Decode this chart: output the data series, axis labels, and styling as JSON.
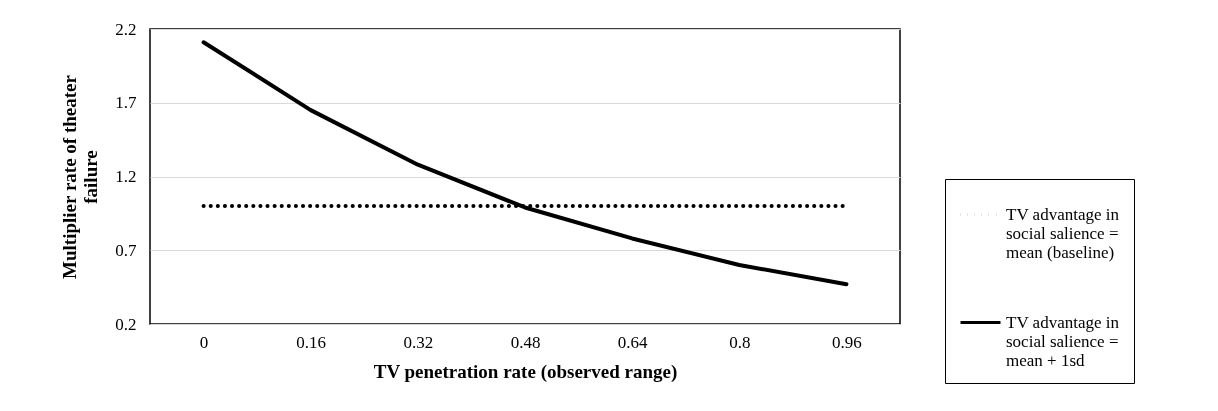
{
  "chart_data": {
    "type": "line",
    "xlabel": "TV penetration rate (observed range)",
    "ylabel": "Multiplier rate of theater failure",
    "categories": [
      "0",
      "0.16",
      "0.32",
      "0.48",
      "0.64",
      "0.8",
      "0.96"
    ],
    "series": [
      {
        "name": "TV advantage in social salience = mean (baseline)",
        "color": "#000000",
        "line_style": "dotted",
        "values": [
          1.0,
          1.0,
          1.0,
          1.0,
          1.0,
          1.0,
          1.0
        ]
      },
      {
        "name": "TV advantage in social salience = mean + 1sd",
        "color": "#000000",
        "line_style": "solid",
        "values": [
          2.11,
          1.65,
          1.28,
          0.99,
          0.78,
          0.6,
          0.47
        ]
      }
    ],
    "ylim": [
      0.2,
      2.2
    ],
    "yticks": [
      0.2,
      0.7,
      1.2,
      1.7,
      2.2
    ],
    "grid": "y",
    "legend": "right"
  }
}
